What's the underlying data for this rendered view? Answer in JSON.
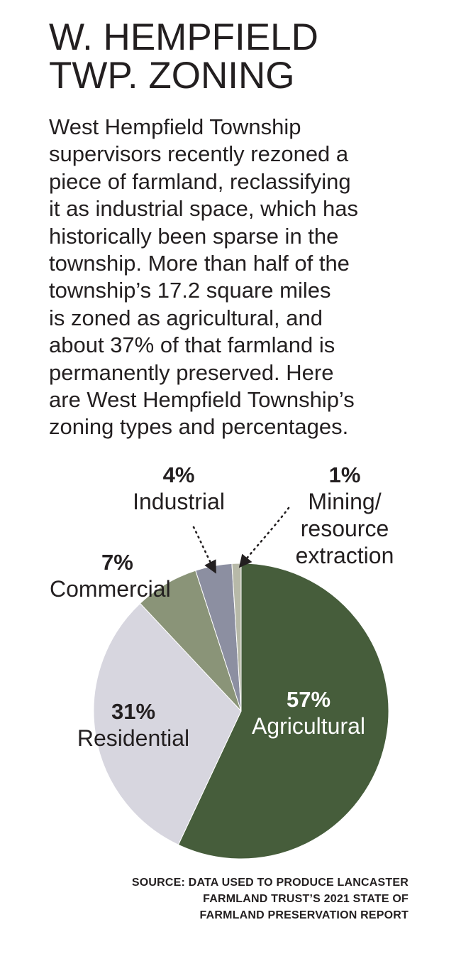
{
  "header": {
    "title_lines": [
      "W. HEMPFIELD",
      "TWP. ZONING"
    ]
  },
  "description_lines": [
    "West Hempfield Township",
    "supervisors recently rezoned a",
    "piece of farmland, reclassifying",
    "it as industrial space, which has",
    "historically been sparse in the",
    "township. More than half of the",
    "township’s 17.2 square miles",
    "is zoned as agricultural, and",
    "about 37% of that farmland is",
    "permanently preserved. Here",
    "are West Hempfield Township’s",
    "zoning types and percentages."
  ],
  "chart_data": {
    "type": "pie",
    "title": "",
    "slices": [
      {
        "label": "Agricultural",
        "value": 57,
        "display": "57%",
        "color": "#465d3b"
      },
      {
        "label": "Residential",
        "value": 31,
        "display": "31%",
        "color": "#d7d6df"
      },
      {
        "label": "Commercial",
        "value": 7,
        "display": "7%",
        "color": "#8a9478"
      },
      {
        "label": "Industrial",
        "value": 4,
        "display": "4%",
        "color": "#8c8fa1"
      },
      {
        "label": "Mining/ resource extraction",
        "label_lines": [
          "Mining/",
          "resource",
          "extraction"
        ],
        "value": 1,
        "display": "1%",
        "color": "#b7b9a8"
      }
    ]
  },
  "source_lines": [
    "SOURCE: DATA USED TO PRODUCE LANCASTER",
    "FARMLAND TRUST’S 2021 STATE OF",
    "FARMLAND PRESERVATION REPORT"
  ]
}
